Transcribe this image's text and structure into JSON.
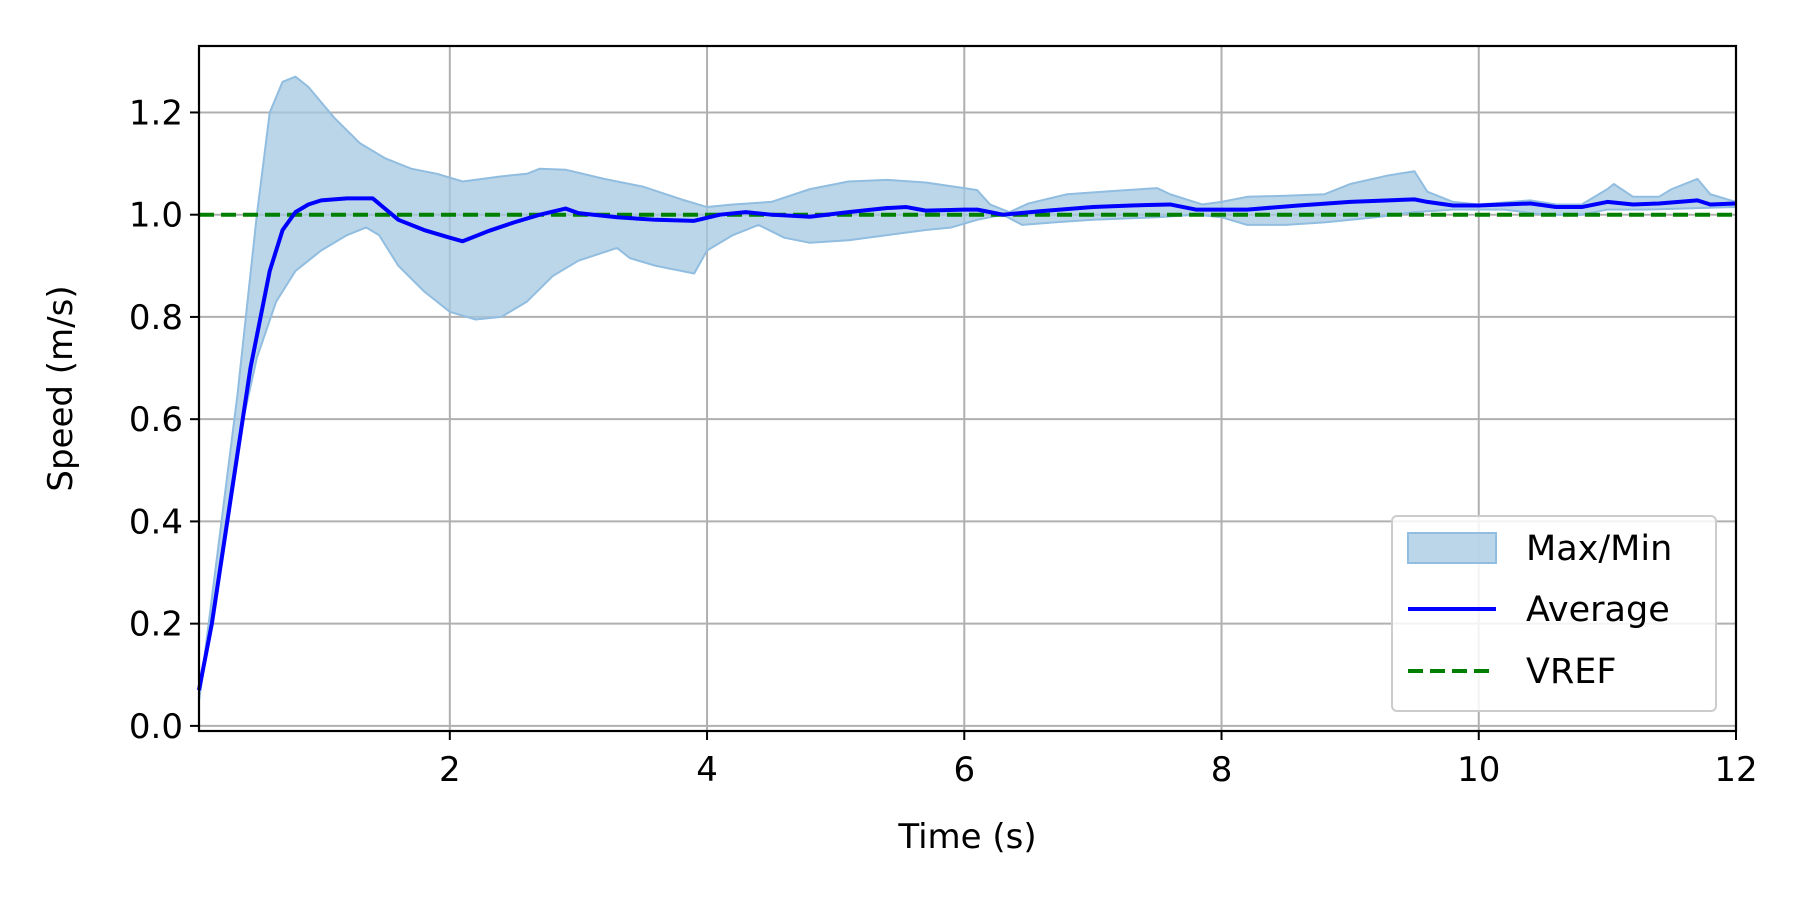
{
  "chart_data": {
    "type": "line",
    "title": "",
    "xlabel": "Time (s)",
    "ylabel": "Speed (m/s)",
    "xlim": [
      0.05,
      12
    ],
    "ylim": [
      -0.01,
      1.33
    ],
    "grid": true,
    "legend_placement": "lower-right",
    "x_ticks": [
      2,
      4,
      6,
      8,
      10,
      12
    ],
    "x_tick_labels": [
      "2",
      "4",
      "6",
      "8",
      "10",
      "12"
    ],
    "y_ticks": [
      0.0,
      0.2,
      0.4,
      0.6,
      0.8,
      1.0,
      1.2
    ],
    "y_tick_labels": [
      "0.0",
      "0.2",
      "0.4",
      "0.6",
      "0.8",
      "1.0",
      "1.2"
    ],
    "colors": {
      "band_fill": "#a6c8e2",
      "band_edge": "#90bde0",
      "average": "#0000ff",
      "vref": "#007f00",
      "grid": "#b0b0b0"
    },
    "legend": [
      {
        "label": "Max/Min",
        "kind": "band"
      },
      {
        "label": "Average",
        "kind": "line"
      },
      {
        "label": "VREF",
        "kind": "dashed"
      }
    ],
    "series": [
      {
        "name": "Max/Min",
        "kind": "band",
        "upper": [
          [
            0.05,
            0.05
          ],
          [
            0.2,
            0.35
          ],
          [
            0.35,
            0.65
          ],
          [
            0.5,
            1.0
          ],
          [
            0.6,
            1.2
          ],
          [
            0.7,
            1.26
          ],
          [
            0.8,
            1.27
          ],
          [
            0.9,
            1.25
          ],
          [
            1.1,
            1.19
          ],
          [
            1.3,
            1.14
          ],
          [
            1.5,
            1.11
          ],
          [
            1.7,
            1.09
          ],
          [
            1.9,
            1.08
          ],
          [
            2.1,
            1.065
          ],
          [
            2.4,
            1.075
          ],
          [
            2.6,
            1.08
          ],
          [
            2.7,
            1.09
          ],
          [
            2.9,
            1.088
          ],
          [
            3.2,
            1.07
          ],
          [
            3.5,
            1.055
          ],
          [
            3.8,
            1.03
          ],
          [
            4.0,
            1.015
          ],
          [
            4.2,
            1.02
          ],
          [
            4.5,
            1.025
          ],
          [
            4.8,
            1.05
          ],
          [
            5.1,
            1.065
          ],
          [
            5.4,
            1.068
          ],
          [
            5.7,
            1.063
          ],
          [
            6.0,
            1.052
          ],
          [
            6.1,
            1.048
          ],
          [
            6.2,
            1.02
          ],
          [
            6.35,
            1.005
          ],
          [
            6.5,
            1.022
          ],
          [
            6.8,
            1.04
          ],
          [
            7.2,
            1.047
          ],
          [
            7.5,
            1.052
          ],
          [
            7.6,
            1.04
          ],
          [
            7.85,
            1.02
          ],
          [
            8.0,
            1.025
          ],
          [
            8.2,
            1.035
          ],
          [
            8.5,
            1.037
          ],
          [
            8.8,
            1.04
          ],
          [
            9.0,
            1.06
          ],
          [
            9.3,
            1.077
          ],
          [
            9.5,
            1.085
          ],
          [
            9.6,
            1.045
          ],
          [
            9.8,
            1.025
          ],
          [
            10.0,
            1.02
          ],
          [
            10.4,
            1.028
          ],
          [
            10.6,
            1.02
          ],
          [
            10.8,
            1.02
          ],
          [
            11.0,
            1.05
          ],
          [
            11.05,
            1.06
          ],
          [
            11.2,
            1.035
          ],
          [
            11.4,
            1.035
          ],
          [
            11.5,
            1.05
          ],
          [
            11.7,
            1.07
          ],
          [
            11.8,
            1.04
          ],
          [
            12.0,
            1.025
          ]
        ],
        "lower": [
          [
            0.05,
            0.05
          ],
          [
            0.2,
            0.3
          ],
          [
            0.35,
            0.55
          ],
          [
            0.5,
            0.72
          ],
          [
            0.65,
            0.83
          ],
          [
            0.8,
            0.89
          ],
          [
            1.0,
            0.93
          ],
          [
            1.2,
            0.96
          ],
          [
            1.35,
            0.975
          ],
          [
            1.45,
            0.96
          ],
          [
            1.6,
            0.9
          ],
          [
            1.8,
            0.85
          ],
          [
            2.0,
            0.81
          ],
          [
            2.2,
            0.795
          ],
          [
            2.4,
            0.8
          ],
          [
            2.6,
            0.83
          ],
          [
            2.8,
            0.88
          ],
          [
            3.0,
            0.91
          ],
          [
            3.3,
            0.935
          ],
          [
            3.4,
            0.915
          ],
          [
            3.6,
            0.9
          ],
          [
            3.9,
            0.885
          ],
          [
            4.0,
            0.93
          ],
          [
            4.2,
            0.96
          ],
          [
            4.4,
            0.98
          ],
          [
            4.6,
            0.955
          ],
          [
            4.8,
            0.945
          ],
          [
            5.1,
            0.95
          ],
          [
            5.4,
            0.96
          ],
          [
            5.7,
            0.97
          ],
          [
            5.9,
            0.975
          ],
          [
            6.1,
            0.99
          ],
          [
            6.3,
            1.0
          ],
          [
            6.45,
            0.98
          ],
          [
            6.7,
            0.985
          ],
          [
            7.0,
            0.99
          ],
          [
            7.5,
            0.995
          ],
          [
            7.8,
            1.0
          ],
          [
            8.0,
            0.995
          ],
          [
            8.2,
            0.98
          ],
          [
            8.5,
            0.98
          ],
          [
            8.8,
            0.985
          ],
          [
            9.2,
            0.995
          ],
          [
            9.5,
            1.005
          ],
          [
            9.8,
            1.01
          ],
          [
            10.2,
            1.01
          ],
          [
            10.5,
            1.0
          ],
          [
            10.8,
            1.0
          ],
          [
            11.0,
            1.01
          ],
          [
            11.3,
            1.01
          ],
          [
            11.6,
            1.012
          ],
          [
            12.0,
            1.015
          ]
        ]
      },
      {
        "name": "Average",
        "kind": "line",
        "points": [
          [
            0.05,
            0.07
          ],
          [
            0.15,
            0.2
          ],
          [
            0.3,
            0.45
          ],
          [
            0.45,
            0.7
          ],
          [
            0.6,
            0.89
          ],
          [
            0.7,
            0.97
          ],
          [
            0.8,
            1.005
          ],
          [
            0.9,
            1.02
          ],
          [
            1.0,
            1.028
          ],
          [
            1.2,
            1.032
          ],
          [
            1.4,
            1.032
          ],
          [
            1.6,
            0.99
          ],
          [
            1.8,
            0.97
          ],
          [
            2.0,
            0.955
          ],
          [
            2.1,
            0.948
          ],
          [
            2.3,
            0.968
          ],
          [
            2.5,
            0.985
          ],
          [
            2.7,
            1.0
          ],
          [
            2.9,
            1.012
          ],
          [
            3.0,
            1.003
          ],
          [
            3.3,
            0.995
          ],
          [
            3.6,
            0.99
          ],
          [
            3.9,
            0.988
          ],
          [
            4.1,
            1.0
          ],
          [
            4.3,
            1.005
          ],
          [
            4.5,
            1.0
          ],
          [
            4.8,
            0.996
          ],
          [
            5.1,
            1.005
          ],
          [
            5.4,
            1.013
          ],
          [
            5.55,
            1.015
          ],
          [
            5.7,
            1.008
          ],
          [
            6.0,
            1.01
          ],
          [
            6.1,
            1.01
          ],
          [
            6.2,
            1.005
          ],
          [
            6.3,
            1.0
          ],
          [
            6.6,
            1.007
          ],
          [
            7.0,
            1.015
          ],
          [
            7.3,
            1.018
          ],
          [
            7.6,
            1.02
          ],
          [
            7.8,
            1.01
          ],
          [
            8.2,
            1.01
          ],
          [
            8.6,
            1.018
          ],
          [
            9.0,
            1.025
          ],
          [
            9.3,
            1.028
          ],
          [
            9.5,
            1.03
          ],
          [
            9.6,
            1.025
          ],
          [
            9.8,
            1.018
          ],
          [
            10.0,
            1.018
          ],
          [
            10.4,
            1.022
          ],
          [
            10.6,
            1.015
          ],
          [
            10.8,
            1.015
          ],
          [
            11.0,
            1.025
          ],
          [
            11.2,
            1.02
          ],
          [
            11.4,
            1.022
          ],
          [
            11.7,
            1.028
          ],
          [
            11.8,
            1.02
          ],
          [
            12.0,
            1.022
          ]
        ]
      },
      {
        "name": "VREF",
        "kind": "hline",
        "y": 1.0
      }
    ]
  }
}
